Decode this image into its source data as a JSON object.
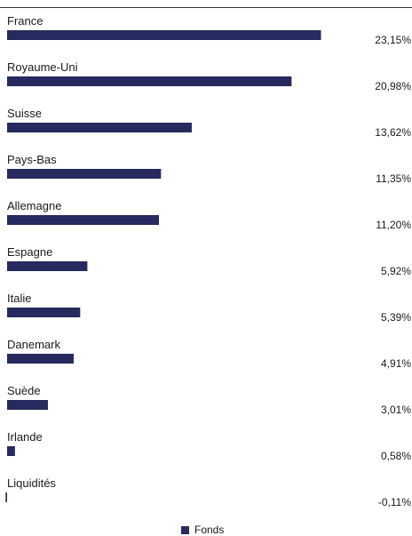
{
  "colors": {
    "bar": "#262a5e",
    "line": "#333333"
  },
  "legend": {
    "label": "Fonds",
    "position": "bottom-center"
  },
  "chart_data": {
    "type": "bar",
    "orientation": "horizontal",
    "categories": [
      "France",
      "Royaume-Uni",
      "Suisse",
      "Pays-Bas",
      "Allemagne",
      "Espagne",
      "Italie",
      "Danemark",
      "Suède",
      "Irlande",
      "Liquidités"
    ],
    "series": [
      {
        "name": "Fonds",
        "values": [
          23.15,
          20.98,
          13.62,
          11.35,
          11.2,
          5.92,
          5.39,
          4.91,
          3.01,
          0.58,
          -0.11
        ],
        "labels": [
          "23,15%",
          "20,98%",
          "13,62%",
          "11,35%",
          "11,20%",
          "5,92%",
          "5,39%",
          "4,91%",
          "3,01%",
          "0,58%",
          "-0,11%"
        ]
      }
    ],
    "grid": false
  }
}
